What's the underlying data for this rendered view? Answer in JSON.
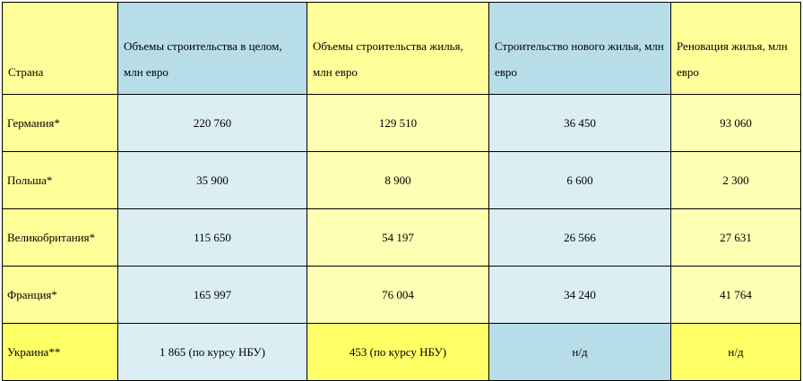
{
  "table": {
    "header": [
      "Страна",
      "Объемы строительства в целом, млн евро",
      "Объемы строительства жилья, млн евро",
      "Строительство нового жилья, млн евро",
      "Реновация жилья, млн евро"
    ],
    "rows": [
      [
        "Германия*",
        "220 760",
        "129 510",
        "36 450",
        "93 060"
      ],
      [
        "Польша*",
        "35 900",
        "8 900",
        "6 600",
        "2 300"
      ],
      [
        "Великобритания*",
        "115 650",
        "54 197",
        "26 566",
        "27 631"
      ],
      [
        "Франция*",
        "165 997",
        "76 004",
        "34 240",
        "41 764"
      ],
      [
        "Украина**",
        "1 865 (по курсу НБУ)",
        "453 (по курсу НБУ)",
        "н/д",
        "н/д"
      ]
    ]
  }
}
